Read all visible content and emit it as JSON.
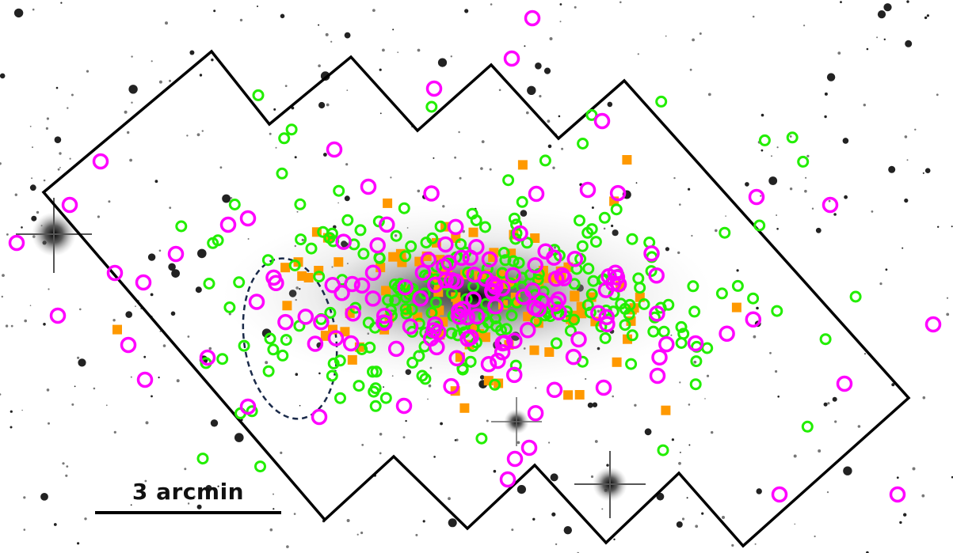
{
  "image": {
    "description_label": "",
    "scale_bar": {
      "label": "3 arcmin"
    },
    "colors": {
      "background": "#ffffff",
      "footprint_outline": "#000000",
      "dashed_region": "#1a2a4a",
      "magenta_circles": "#ff00ff",
      "green_circles": "#22ee00",
      "orange_squares": "#ff9900",
      "galaxy_core": "#000000"
    },
    "marker_types": [
      "magenta-circle",
      "green-circle",
      "orange-square"
    ]
  }
}
